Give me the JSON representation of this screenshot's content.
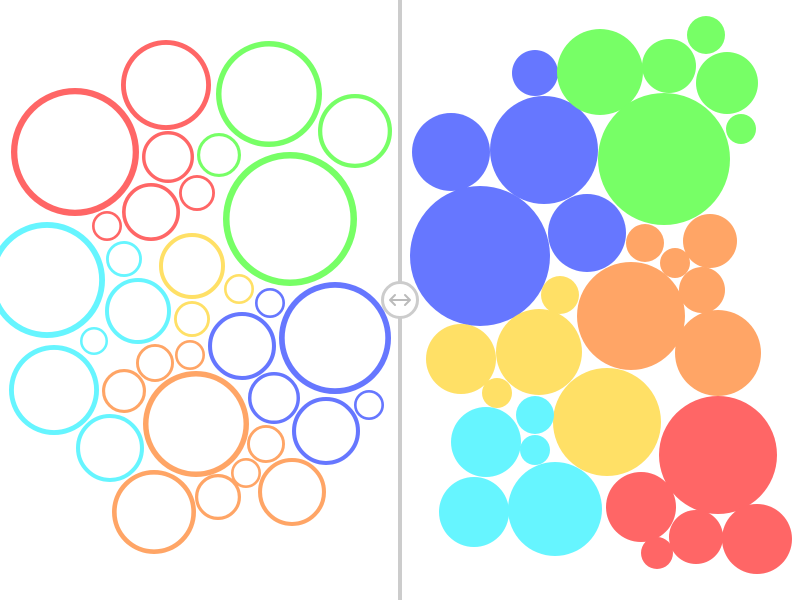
{
  "background_color": "#FFFFFF",
  "palette": {
    "red": "#FF6666",
    "green": "#77FF66",
    "cyan": "#66F5FF",
    "yellow": "#FFE066",
    "blue": "#6677FF",
    "orange": "#FFA566"
  },
  "divider": {
    "color": "#CCCCCC"
  },
  "comparison_slider": {
    "split_percent": 50,
    "handle_icon": "left-right-arrow-icon",
    "handle_fill_color": "#FFFFFF",
    "handle_border_color": "#CCCCCC",
    "arrow_color": "#BBBBBB"
  }
}
